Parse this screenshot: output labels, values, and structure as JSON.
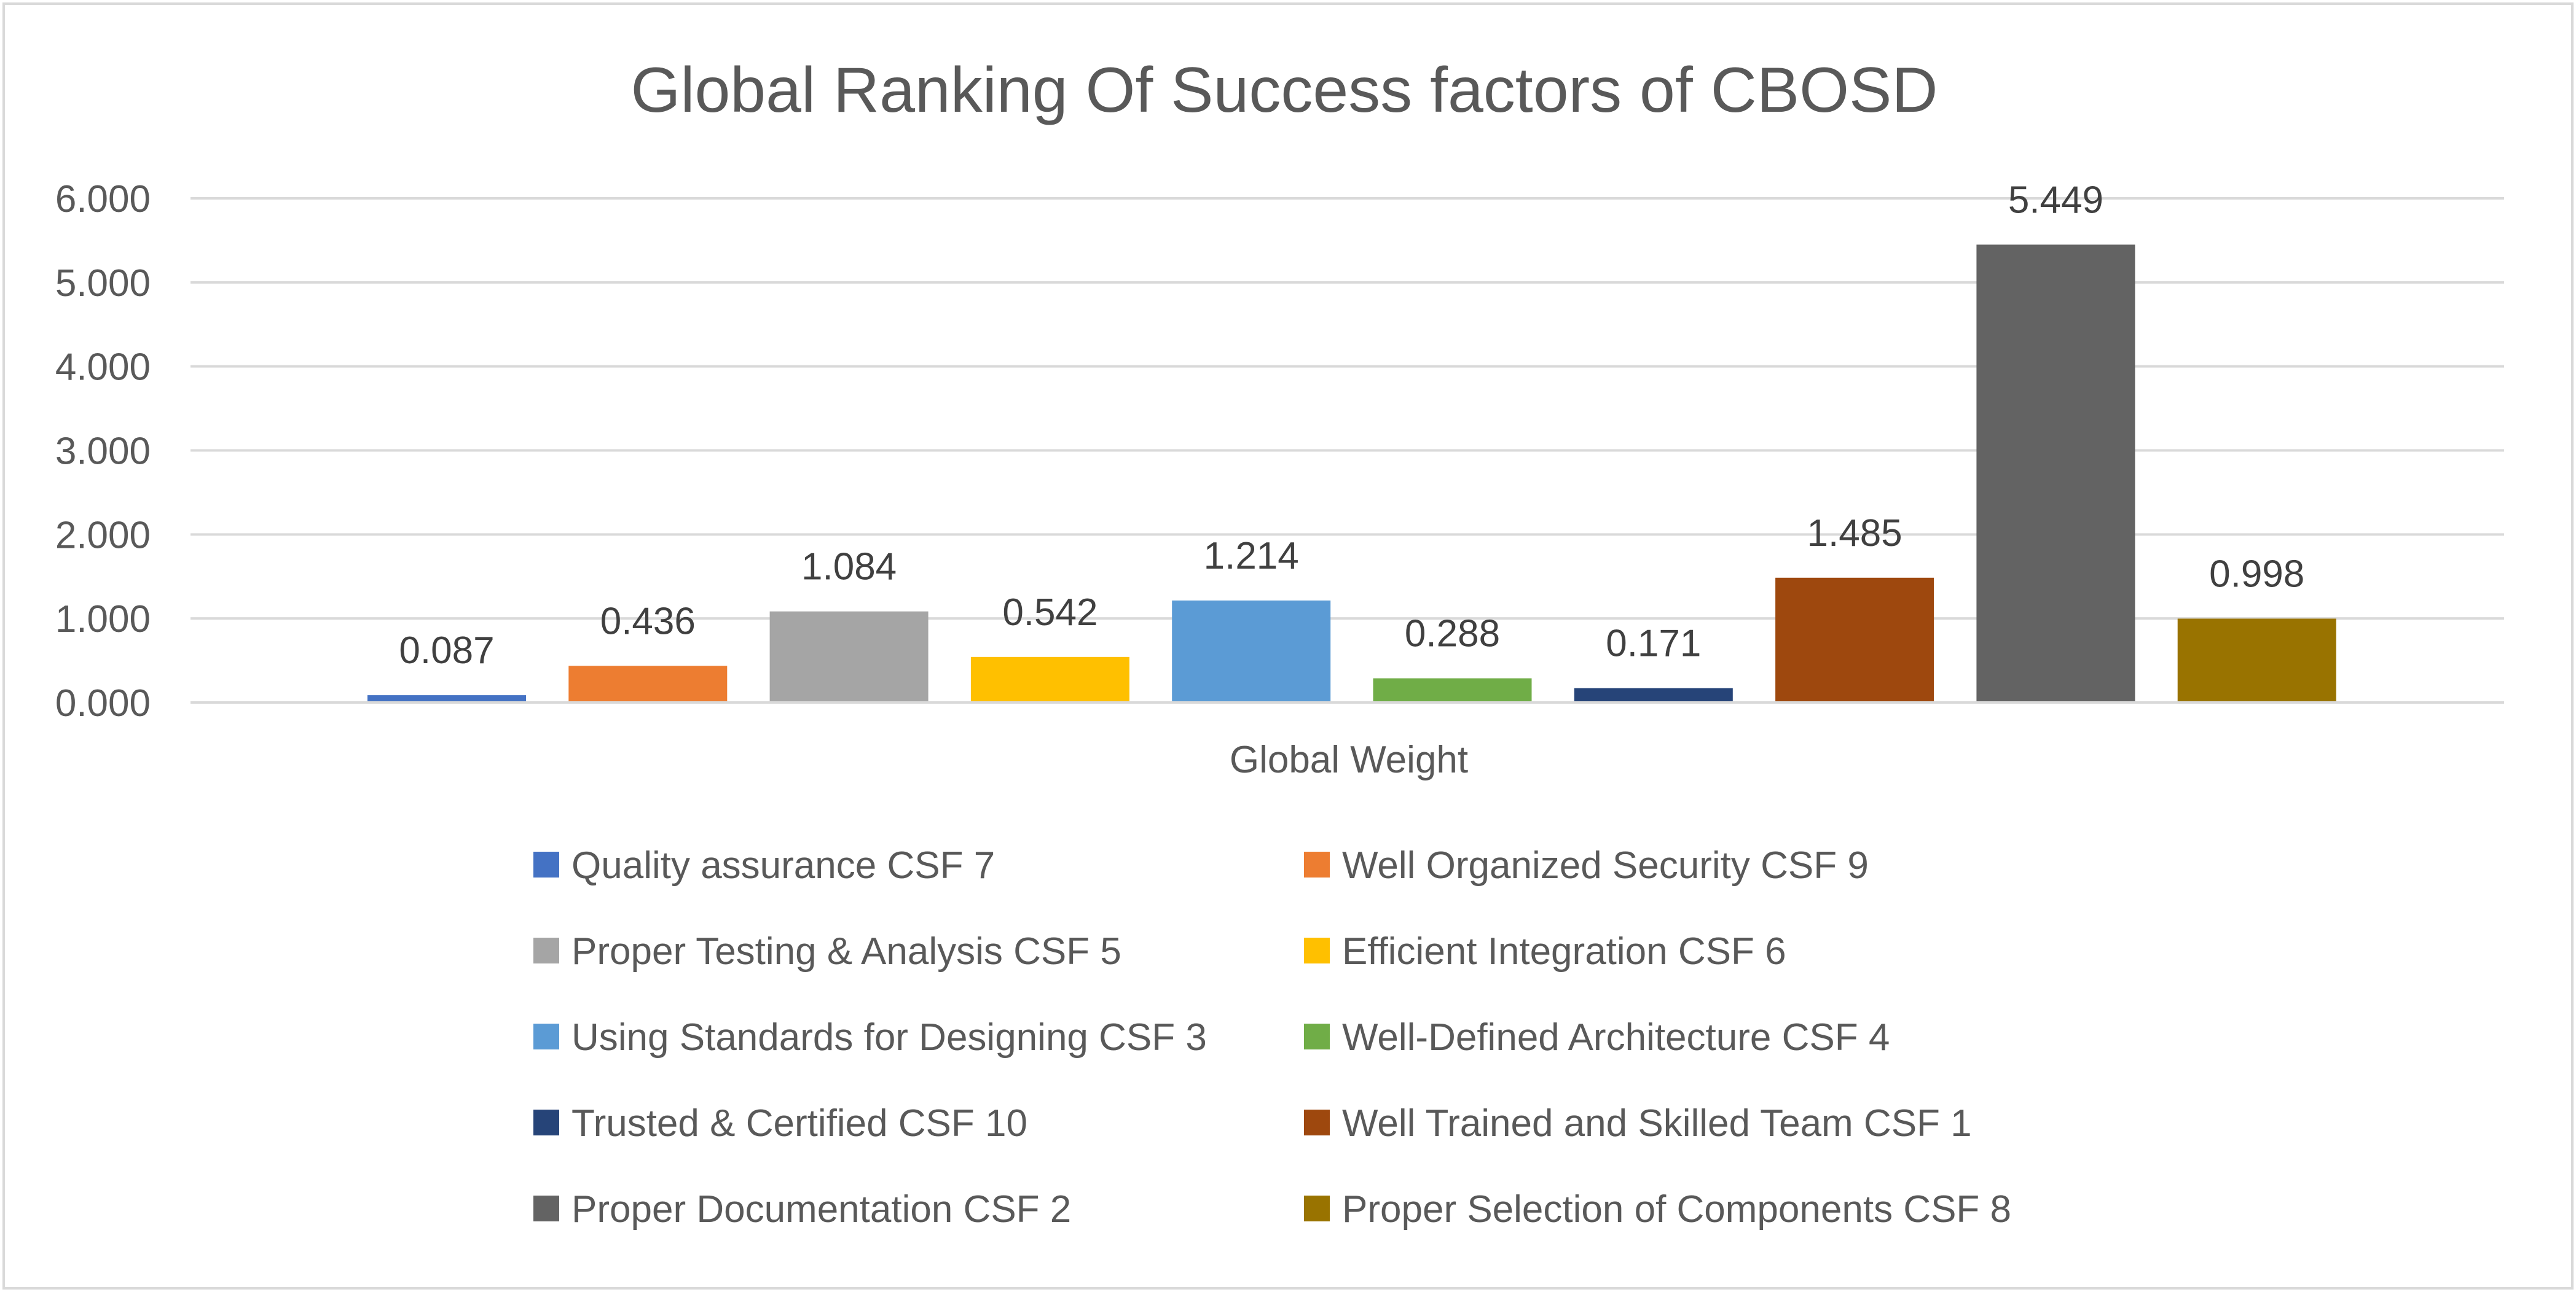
{
  "chart_data": {
    "type": "bar",
    "title": "Global Ranking Of Success factors of CBOSD",
    "xlabel": "Global Weight",
    "ylabel": "",
    "ylim": [
      0,
      6
    ],
    "ytick_values": [
      0,
      1,
      2,
      3,
      4,
      5,
      6
    ],
    "ytick_labels": [
      "0.000",
      "1.000",
      "2.000",
      "3.000",
      "4.000",
      "5.000",
      "6.000"
    ],
    "grid": true,
    "legend_position": "bottom",
    "categories": [
      "Global Weight"
    ],
    "series": [
      {
        "name": "Quality assurance CSF 7",
        "value": 0.087,
        "label": "0.087",
        "color": "#4472C4"
      },
      {
        "name": "Well Organized Security CSF 9",
        "value": 0.436,
        "label": "0.436",
        "color": "#ED7D31"
      },
      {
        "name": "Proper Testing & Analysis CSF 5",
        "value": 1.084,
        "label": "1.084",
        "color": "#A5A5A5"
      },
      {
        "name": "Efficient Integration CSF 6",
        "value": 0.542,
        "label": "0.542",
        "color": "#FFC000"
      },
      {
        "name": "Using Standards for Designing CSF 3",
        "value": 1.214,
        "label": "1.214",
        "color": "#5B9BD5"
      },
      {
        "name": "Well-Defined Architecture CSF 4",
        "value": 0.288,
        "label": "0.288",
        "color": "#70AD47"
      },
      {
        "name": "Trusted & Certified CSF 10",
        "value": 0.171,
        "label": "0.171",
        "color": "#264478"
      },
      {
        "name": "Well Trained and Skilled Team CSF 1",
        "value": 1.485,
        "label": "1.485",
        "color": "#9E480E"
      },
      {
        "name": "Proper Documentation CSF 2",
        "value": 5.449,
        "label": "5.449",
        "color": "#636363"
      },
      {
        "name": "Proper Selection of Components CSF 8",
        "value": 0.998,
        "label": "0.998",
        "color": "#997300"
      }
    ]
  }
}
